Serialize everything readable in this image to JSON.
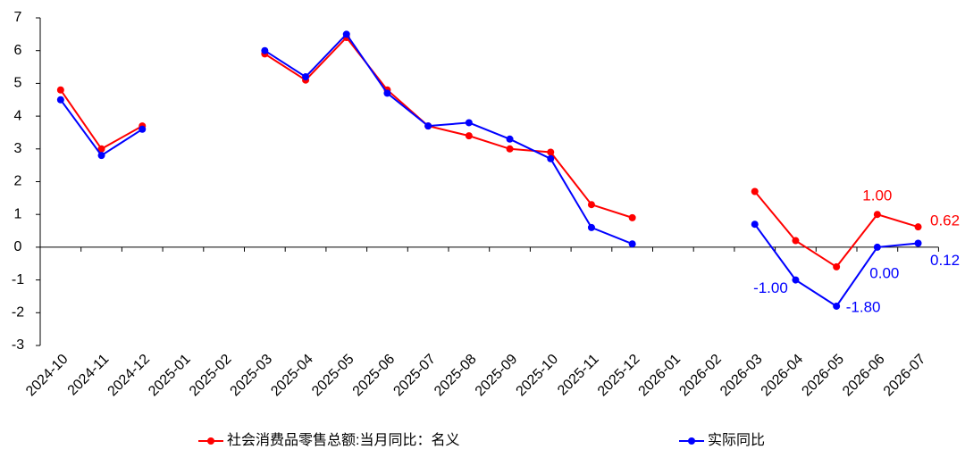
{
  "chart_data": {
    "type": "line",
    "categories": [
      "2024-10",
      "2024-11",
      "2024-12",
      "2025-01",
      "2025-02",
      "2025-03",
      "2025-04",
      "2025-05",
      "2025-06",
      "2025-07",
      "2025-08",
      "2025-09",
      "2025-10",
      "2025-11",
      "2025-12",
      "2026-01",
      "2026-02",
      "2026-03",
      "2026-04",
      "2026-05",
      "2026-06",
      "2026-07"
    ],
    "series": [
      {
        "name": "社会消费品零售总额:当月同比：名义",
        "color": "#ff0000",
        "values": [
          4.8,
          3.0,
          3.7,
          null,
          null,
          5.9,
          5.1,
          6.4,
          4.8,
          3.7,
          3.4,
          3.0,
          2.9,
          1.3,
          0.9,
          null,
          null,
          1.7,
          0.2,
          -0.6,
          1.0,
          0.62
        ],
        "value_labels": [
          null,
          null,
          null,
          null,
          null,
          null,
          null,
          null,
          null,
          null,
          null,
          null,
          null,
          null,
          null,
          null,
          null,
          null,
          null,
          null,
          "1.00",
          "0.62"
        ]
      },
      {
        "name": "实际同比",
        "color": "#0000ff",
        "values": [
          4.5,
          2.8,
          3.6,
          null,
          null,
          6.0,
          5.2,
          6.5,
          4.7,
          3.7,
          3.8,
          3.3,
          2.7,
          0.6,
          0.1,
          null,
          null,
          0.7,
          -1.0,
          -1.8,
          0.0,
          0.12
        ],
        "value_labels": [
          null,
          null,
          null,
          null,
          null,
          null,
          null,
          null,
          null,
          null,
          null,
          null,
          null,
          null,
          null,
          null,
          null,
          null,
          "-1.00",
          "-1.80",
          "0.00",
          "0.12"
        ]
      }
    ],
    "ylim": [
      -3,
      7
    ],
    "yticks": [
      -3,
      -2,
      -1,
      0,
      1,
      2,
      3,
      4,
      5,
      6,
      7
    ],
    "legend": "bottom"
  }
}
